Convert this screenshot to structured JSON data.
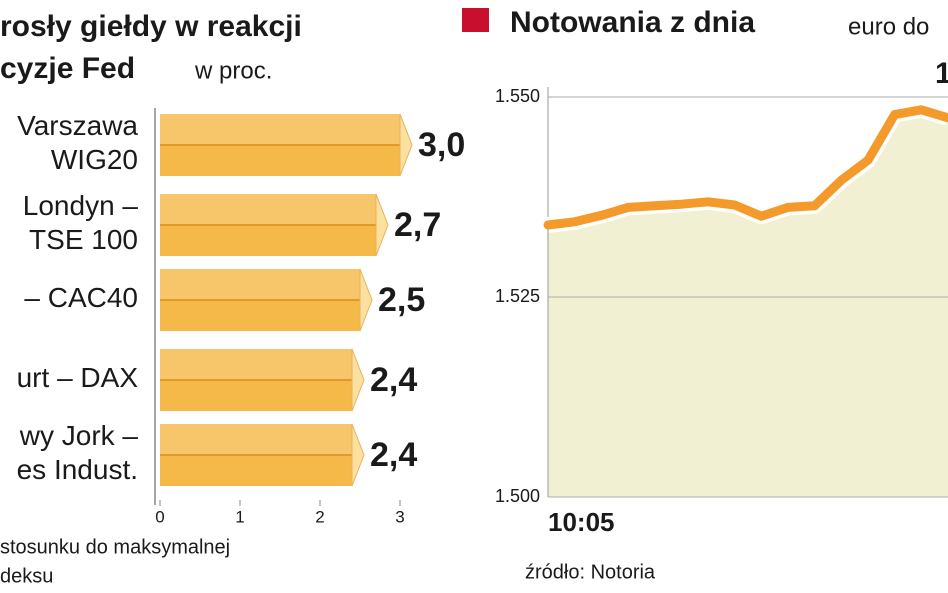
{
  "charts": [
    {
      "type": "bar",
      "title": [
        "rosły giełdy w reakcji",
        "cyzje Fed"
      ],
      "subtitle": "w proc.",
      "categories": [
        [
          "Varszawa",
          "WIG20"
        ],
        [
          "Londyn –",
          "TSE 100"
        ],
        [
          "– CAC40"
        ],
        [
          "urt – DAX"
        ],
        [
          "wy Jork –",
          "es Indust."
        ]
      ],
      "values": [
        3.0,
        2.7,
        2.5,
        2.4,
        2.4
      ],
      "value_labels": [
        "3,0",
        "2,7",
        "2,5",
        "2,4",
        "2,4"
      ],
      "color": "#f5b94a",
      "xlim": [
        0,
        3
      ],
      "xticks": [
        0,
        1,
        2,
        3
      ],
      "note": [
        "stosunku do maksymalnej",
        "deksu"
      ]
    },
    {
      "type": "line",
      "title": "Notowania z dnia",
      "subtitle": "euro do",
      "annotation": "1",
      "categories": [
        "10:05",
        null,
        null,
        null,
        null,
        null,
        null,
        null,
        null,
        null,
        null,
        null,
        null,
        null,
        null,
        null
      ],
      "series": [
        {
          "color": "#f39a2a",
          "values": [
            1.534,
            1.5344,
            1.5352,
            1.5362,
            1.5364,
            1.5366,
            1.5369,
            1.5365,
            1.5351,
            1.5362,
            1.5364,
            1.5396,
            1.5421,
            1.5478,
            1.5484,
            1.5474
          ]
        }
      ],
      "ylim": [
        1.5,
        1.55
      ],
      "yticks": [
        {
          "value": 1.5,
          "label": "1.500"
        },
        {
          "value": 1.525,
          "label": "1.525"
        },
        {
          "value": 1.55,
          "label": "1.550"
        }
      ],
      "grid": true,
      "source": "źródło: Notoria"
    }
  ]
}
